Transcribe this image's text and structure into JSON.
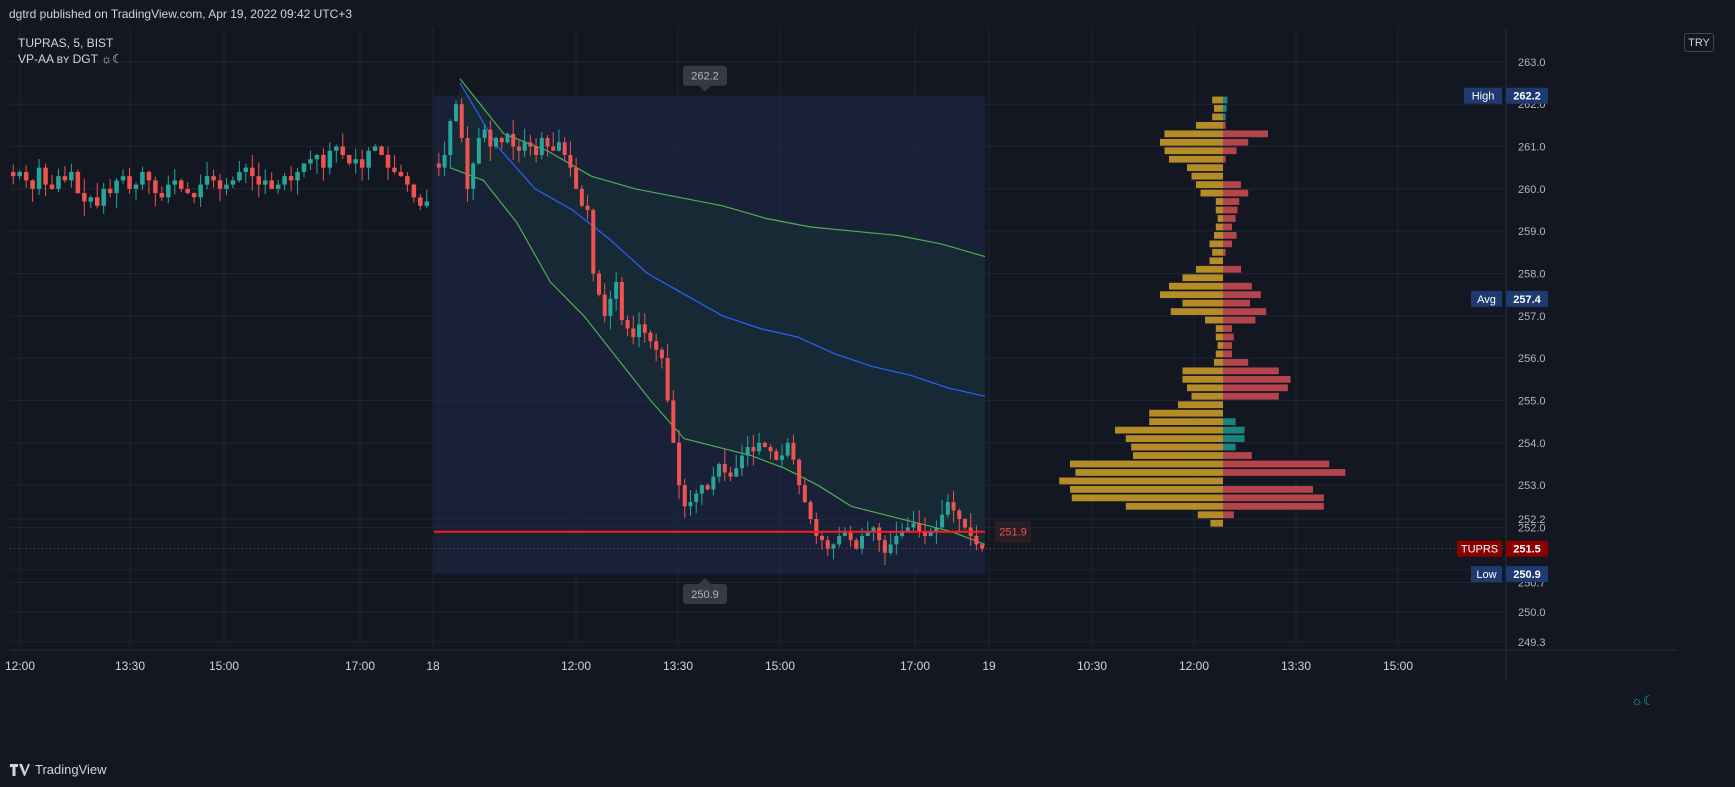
{
  "header": {
    "published_text": "dgtrd published on TradingView.com, Apr 19, 2022 09:42 UTC+3"
  },
  "legend": {
    "symbol_line": "TUPRAS, 5, BIST",
    "indicator_line": "VP-AA ʙʏ DGT ☼☾"
  },
  "currency_label": "TRY",
  "footer": {
    "brand": "TradingView"
  },
  "settings_glyph": "☼☾",
  "colors": {
    "background": "#131722",
    "grid": "#1f2430",
    "up": "#26a69a",
    "down": "#ef5350",
    "vwap": "#2962ff",
    "band": "#4caf50",
    "range_box": "#1e2a4a",
    "volume_total": "#d4a12a",
    "volume_down": "#c84a52",
    "volume_up": "#1f8f88",
    "poc_line": "#ff1a1a"
  },
  "chart_data": {
    "type": "candlestick",
    "title": "",
    "symbol": "TUPRAS",
    "interval": "5",
    "exchange": "BIST",
    "ylim": [
      249.2,
      263.8
    ],
    "y_ticks": [
      "249.3",
      "250.0",
      "250.7",
      "251.0",
      "252.0",
      "252.2",
      "253.0",
      "254.0",
      "255.0",
      "256.0",
      "257.0",
      "258.0",
      "259.0",
      "260.0",
      "261.0",
      "262.0",
      "263.0"
    ],
    "x_ticks": [
      "12:00",
      "13:30",
      "15:00",
      "17:00",
      "18",
      "12:00",
      "13:30",
      "15:00",
      "17:00",
      "19",
      "10:30",
      "12:00",
      "13:30",
      "15:00"
    ],
    "price_markers": [
      {
        "label": "High",
        "value": "262.2"
      },
      {
        "label": "Avg",
        "value": "257.4"
      },
      {
        "label": "TUPRS",
        "value": "251.5"
      },
      {
        "label": "Low",
        "value": "250.9"
      }
    ],
    "range_high_label": "262.2",
    "range_low_label": "250.9",
    "poc_label": "251.9",
    "poc_price": 251.9,
    "range": {
      "high": 262.2,
      "low": 250.9
    },
    "vwap": [
      262.5,
      261.0,
      260.0,
      259.5,
      258.8,
      258.0,
      257.5,
      257.0,
      256.7,
      256.5,
      256.1,
      255.8,
      255.6,
      255.3,
      255.1
    ],
    "upper_band": [
      262.6,
      261.3,
      260.9,
      260.3,
      260.0,
      259.8,
      259.6,
      259.3,
      259.1,
      259.0,
      258.9,
      258.7,
      258.4
    ],
    "lower_band": [
      260.5,
      260.2,
      259.2,
      257.8,
      257.0,
      256.0,
      255.0,
      254.1,
      253.9,
      253.7,
      253.4,
      253.0,
      252.5,
      252.3,
      252.1,
      251.9,
      251.6
    ],
    "prior_day_closes": [
      260.3,
      260.4,
      260.2,
      260.0,
      260.5,
      260.1,
      260.0,
      260.3,
      260.2,
      260.4,
      259.9,
      259.7,
      259.8,
      259.6,
      260.0,
      259.9,
      260.2,
      260.3,
      260.0,
      260.1,
      260.4,
      260.2,
      259.9,
      259.8,
      260.1,
      260.2,
      260.0,
      259.9,
      259.8,
      260.1,
      260.3,
      260.2,
      260.0,
      260.1,
      260.2,
      260.4,
      260.5,
      260.3,
      260.1,
      260.2,
      260.0,
      260.1,
      260.3,
      260.2,
      260.4,
      260.6,
      260.7,
      260.8,
      260.5,
      260.9,
      261.0,
      260.8,
      260.6,
      260.7,
      260.5,
      260.9,
      261.0,
      260.8,
      260.5,
      260.4,
      260.3,
      260.1,
      259.8,
      259.6,
      259.7
    ],
    "session_closes": [
      260.5,
      260.8,
      261.6,
      262.0,
      261.2,
      260.0,
      260.6,
      261.2,
      261.4,
      261.0,
      261.2,
      261.1,
      261.3,
      261.0,
      260.9,
      261.1,
      261.0,
      260.8,
      261.2,
      261.0,
      260.9,
      261.1,
      260.8,
      260.5,
      260.0,
      259.6,
      259.5,
      258.0,
      257.5,
      257.0,
      257.4,
      257.8,
      256.9,
      256.7,
      256.5,
      256.8,
      256.6,
      256.4,
      256.2,
      256.0,
      255.0,
      254.0,
      253.0,
      252.5,
      252.6,
      252.8,
      253.0,
      252.9,
      253.2,
      253.5,
      253.3,
      253.2,
      253.4,
      253.7,
      253.9,
      253.8,
      254.0,
      253.9,
      253.8,
      253.6,
      253.7,
      254.0,
      253.6,
      253.0,
      252.6,
      252.2,
      251.8,
      251.7,
      251.5,
      251.6,
      251.8,
      251.9,
      251.7,
      251.5,
      251.8,
      251.9,
      252.0,
      251.7,
      251.4,
      251.6,
      251.8,
      251.9,
      252.0,
      252.1,
      251.9,
      251.8,
      251.9,
      252.0,
      252.3,
      252.6,
      252.4,
      252.2,
      252.0,
      251.8,
      251.6,
      251.5
    ],
    "volume_profile": [
      {
        "price": 262.1,
        "total": 12,
        "up": 5,
        "down": 0
      },
      {
        "price": 261.9,
        "total": 10,
        "up": 4,
        "down": 0
      },
      {
        "price": 261.7,
        "total": 12,
        "up": 3,
        "down": 0
      },
      {
        "price": 261.5,
        "total": 30,
        "up": 0,
        "down": 3
      },
      {
        "price": 261.3,
        "total": 65,
        "up": 0,
        "down": 50
      },
      {
        "price": 261.1,
        "total": 70,
        "up": 0,
        "down": 28
      },
      {
        "price": 260.9,
        "total": 65,
        "up": 0,
        "down": 15
      },
      {
        "price": 260.7,
        "total": 60,
        "up": 0,
        "down": 3
      },
      {
        "price": 260.5,
        "total": 40,
        "up": 0,
        "down": 0
      },
      {
        "price": 260.3,
        "total": 35,
        "up": 0,
        "down": 0
      },
      {
        "price": 260.1,
        "total": 30,
        "up": 0,
        "down": 20
      },
      {
        "price": 259.9,
        "total": 25,
        "up": 0,
        "down": 28
      },
      {
        "price": 259.7,
        "total": 8,
        "up": 0,
        "down": 18
      },
      {
        "price": 259.5,
        "total": 8,
        "up": 0,
        "down": 16
      },
      {
        "price": 259.3,
        "total": 6,
        "up": 0,
        "down": 14
      },
      {
        "price": 259.1,
        "total": 8,
        "up": 0,
        "down": 10
      },
      {
        "price": 258.9,
        "total": 10,
        "up": 0,
        "down": 15
      },
      {
        "price": 258.7,
        "total": 15,
        "up": 0,
        "down": 10
      },
      {
        "price": 258.5,
        "total": 12,
        "up": 0,
        "down": 3
      },
      {
        "price": 258.3,
        "total": 15,
        "up": 0,
        "down": 0
      },
      {
        "price": 258.1,
        "total": 30,
        "up": 0,
        "down": 20
      },
      {
        "price": 257.9,
        "total": 45,
        "up": 0,
        "down": 0
      },
      {
        "price": 257.7,
        "total": 60,
        "up": 0,
        "down": 32
      },
      {
        "price": 257.5,
        "total": 70,
        "up": 0,
        "down": 42
      },
      {
        "price": 257.3,
        "total": 45,
        "up": 0,
        "down": 30
      },
      {
        "price": 257.1,
        "total": 58,
        "up": 0,
        "down": 48
      },
      {
        "price": 256.9,
        "total": 20,
        "up": 0,
        "down": 36
      },
      {
        "price": 256.7,
        "total": 8,
        "up": 0,
        "down": 10
      },
      {
        "price": 256.5,
        "total": 8,
        "up": 0,
        "down": 12
      },
      {
        "price": 256.3,
        "total": 6,
        "up": 0,
        "down": 10
      },
      {
        "price": 256.1,
        "total": 8,
        "up": 0,
        "down": 10
      },
      {
        "price": 255.9,
        "total": 10,
        "up": 0,
        "down": 28
      },
      {
        "price": 255.7,
        "total": 45,
        "up": 0,
        "down": 62
      },
      {
        "price": 255.5,
        "total": 45,
        "up": 0,
        "down": 75
      },
      {
        "price": 255.3,
        "total": 40,
        "up": 0,
        "down": 72
      },
      {
        "price": 255.1,
        "total": 35,
        "up": 0,
        "down": 62
      },
      {
        "price": 254.9,
        "total": 50,
        "up": 0,
        "down": 0
      },
      {
        "price": 254.7,
        "total": 82,
        "up": 0,
        "down": 0
      },
      {
        "price": 254.5,
        "total": 82,
        "up": 14,
        "down": 0
      },
      {
        "price": 254.3,
        "total": 120,
        "up": 24,
        "down": 0
      },
      {
        "price": 254.1,
        "total": 108,
        "up": 24,
        "down": 0
      },
      {
        "price": 253.9,
        "total": 102,
        "up": 14,
        "down": 0
      },
      {
        "price": 253.7,
        "total": 100,
        "up": 0,
        "down": 32
      },
      {
        "price": 253.5,
        "total": 170,
        "up": 0,
        "down": 118
      },
      {
        "price": 253.3,
        "total": 164,
        "up": 0,
        "down": 136
      },
      {
        "price": 253.1,
        "total": 182,
        "up": 0,
        "down": 0
      },
      {
        "price": 252.9,
        "total": 170,
        "up": 0,
        "down": 100
      },
      {
        "price": 252.7,
        "total": 168,
        "up": 0,
        "down": 112
      },
      {
        "price": 252.5,
        "total": 108,
        "up": 0,
        "down": 112
      },
      {
        "price": 252.3,
        "total": 28,
        "up": 0,
        "down": 12
      },
      {
        "price": 252.1,
        "total": 14,
        "up": 0,
        "down": 0
      }
    ]
  }
}
